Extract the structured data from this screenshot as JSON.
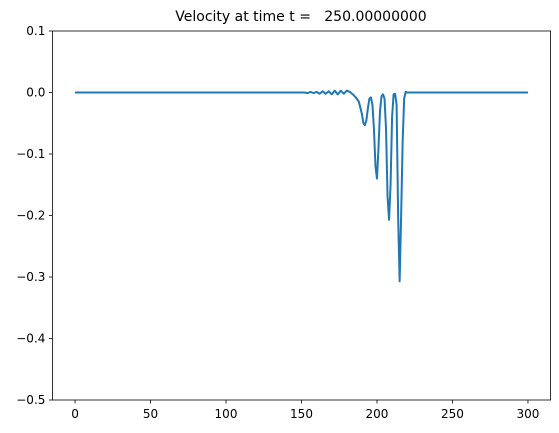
{
  "chart_data": {
    "type": "line",
    "title": "Velocity at time t =   250.00000000",
    "x": [
      0,
      150,
      152,
      154,
      156,
      158,
      160,
      162,
      164,
      166,
      168,
      170,
      172,
      174,
      176,
      178,
      180,
      182,
      184,
      186,
      188,
      190,
      191,
      192,
      193,
      194,
      195,
      196,
      197,
      198,
      199,
      200,
      201,
      202,
      203,
      204,
      205,
      206,
      207,
      208,
      209,
      210,
      211,
      212,
      213,
      214,
      215,
      216,
      217,
      218,
      219,
      220,
      300
    ],
    "series": [
      {
        "color": "#1f77b4",
        "values": [
          0,
          0,
          0,
          -0.001,
          0.001,
          -0.001,
          0.001,
          -0.002,
          0.002,
          -0.002,
          0.002,
          -0.003,
          0.003,
          -0.003,
          0.003,
          -0.002,
          0.003,
          0.001,
          -0.003,
          -0.008,
          -0.015,
          -0.035,
          -0.05,
          -0.053,
          -0.045,
          -0.025,
          -0.01,
          -0.008,
          -0.02,
          -0.06,
          -0.12,
          -0.14,
          -0.09,
          -0.03,
          -0.006,
          -0.003,
          -0.01,
          -0.06,
          -0.17,
          -0.207,
          -0.15,
          -0.04,
          -0.003,
          -0.002,
          -0.02,
          -0.2,
          -0.307,
          -0.2,
          -0.08,
          -0.01,
          0.001,
          0,
          0
        ]
      }
    ],
    "xlim": [
      -15,
      315
    ],
    "xticks": [
      0,
      50,
      100,
      150,
      200,
      250,
      300
    ],
    "ylim": [
      -0.5,
      0.1
    ],
    "yticks": [
      {
        "value": -0.5,
        "label": "−0.5"
      },
      {
        "value": -0.4,
        "label": "−0.4"
      },
      {
        "value": -0.3,
        "label": "−0.3"
      },
      {
        "value": -0.2,
        "label": "−0.2"
      },
      {
        "value": -0.1,
        "label": "−0.1"
      },
      {
        "value": 0,
        "label": "0.0"
      },
      0.1
    ],
    "grid": false
  }
}
